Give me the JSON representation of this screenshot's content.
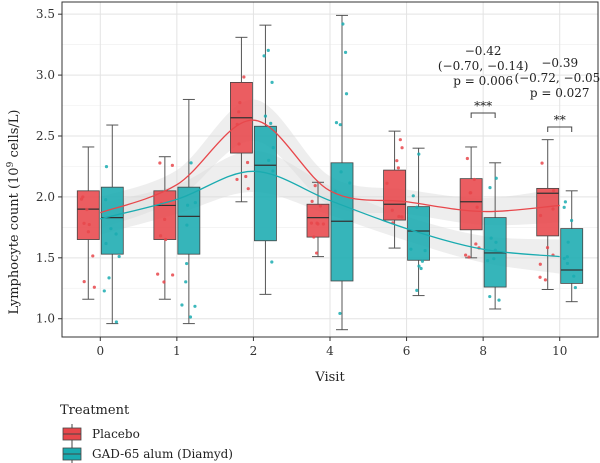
{
  "chart_data": {
    "type": "box",
    "xlabel": "Visit",
    "ylabel": "Lymphocyte count (10",
    "ylabel_superscript": "9",
    "ylabel_suffix": " cells/L)",
    "ylim": [
      0.85,
      3.6
    ],
    "yticks": [
      "1.0",
      "1.5",
      "2.0",
      "2.5",
      "3.0",
      "3.5"
    ],
    "ytick_values": [
      1.0,
      1.5,
      2.0,
      2.5,
      3.0,
      3.5
    ],
    "categories": [
      "0",
      "1",
      "2",
      "4",
      "6",
      "8",
      "10"
    ],
    "grid": true,
    "legend": {
      "title": "Treatment",
      "position": "bottom-left",
      "entries": [
        "Placebo",
        "GAD-65 alum (Diamyd)"
      ]
    },
    "colors": {
      "placebo": "#e8474b",
      "diamyd": "#1aabb0",
      "trend_band": "#d9d9d9"
    },
    "series": [
      {
        "name": "Placebo",
        "boxes": [
          {
            "min": 1.16,
            "q1": 1.65,
            "median": 1.9,
            "q3": 2.05,
            "max": 2.41
          },
          {
            "min": 1.16,
            "q1": 1.65,
            "median": 1.93,
            "q3": 2.05,
            "max": 2.33
          },
          {
            "min": 1.96,
            "q1": 2.36,
            "median": 2.65,
            "q3": 2.94,
            "max": 3.31
          },
          {
            "min": 1.51,
            "q1": 1.67,
            "median": 1.83,
            "q3": 1.94,
            "max": 2.12
          },
          {
            "min": 1.58,
            "q1": 1.81,
            "median": 1.94,
            "q3": 2.22,
            "max": 2.54
          },
          {
            "min": 1.5,
            "q1": 1.73,
            "median": 1.96,
            "q3": 2.15,
            "max": 2.41
          },
          {
            "min": 1.24,
            "q1": 1.68,
            "median": 2.03,
            "q3": 2.07,
            "max": 2.47
          }
        ],
        "trend": [
          1.87,
          2.1,
          2.63,
          2.05,
          1.96,
          1.88,
          1.93
        ]
      },
      {
        "name": "GAD-65 alum (Diamyd)",
        "boxes": [
          {
            "min": 0.96,
            "q1": 1.53,
            "median": 1.83,
            "q3": 2.08,
            "max": 2.59
          },
          {
            "min": 0.96,
            "q1": 1.53,
            "median": 1.84,
            "q3": 2.08,
            "max": 2.8
          },
          {
            "min": 1.2,
            "q1": 1.64,
            "median": 2.26,
            "q3": 2.58,
            "max": 3.41
          },
          {
            "min": 0.91,
            "q1": 1.31,
            "median": 1.8,
            "q3": 2.28,
            "max": 3.49
          },
          {
            "min": 1.19,
            "q1": 1.48,
            "median": 1.72,
            "q3": 1.92,
            "max": 2.4
          },
          {
            "min": 1.08,
            "q1": 1.26,
            "median": 1.54,
            "q3": 1.83,
            "max": 2.28
          },
          {
            "min": 1.14,
            "q1": 1.29,
            "median": 1.4,
            "q3": 1.74,
            "max": 2.05
          }
        ],
        "trend": [
          1.82,
          1.98,
          2.21,
          1.97,
          1.74,
          1.57,
          1.51
        ]
      }
    ],
    "annotations": [
      {
        "visit": "8",
        "lines": [
          "−0.42",
          "(−0.70, −0.14)",
          "p = 0.006"
        ],
        "stars": "***"
      },
      {
        "visit": "10",
        "lines": [
          "−0.39",
          "(−0.72, −0.05)",
          "p = 0.027"
        ],
        "stars": "**"
      }
    ]
  }
}
